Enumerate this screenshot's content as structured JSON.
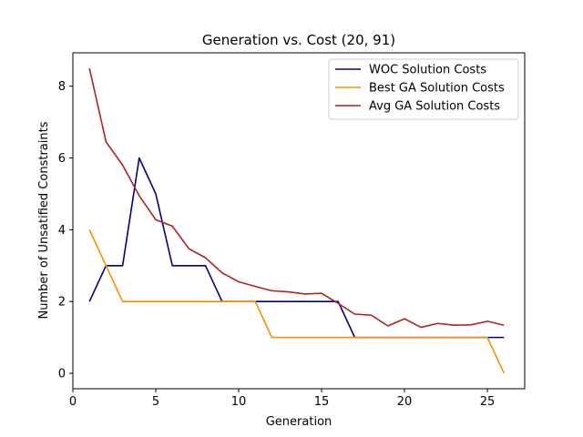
{
  "chart_data": {
    "type": "line",
    "title": "Generation vs. Cost (20, 91)",
    "xlabel": "Generation",
    "ylabel": "Number of Unsatified Constraints",
    "xlim": [
      0,
      27.25
    ],
    "ylim": [
      -0.43,
      8.93
    ],
    "xticks": [
      0,
      5,
      10,
      15,
      20,
      25
    ],
    "yticks": [
      0,
      2,
      4,
      6,
      8
    ],
    "grid": false,
    "legend_position": "top-right",
    "x": [
      1,
      2,
      3,
      4,
      5,
      6,
      7,
      8,
      9,
      10,
      11,
      12,
      13,
      14,
      15,
      16,
      17,
      18,
      19,
      20,
      21,
      22,
      23,
      24,
      25,
      26
    ],
    "series": [
      {
        "name": "WOC Solution Costs",
        "color": "#000080",
        "values": [
          2,
          3,
          3,
          6,
          5,
          3,
          3,
          3,
          2,
          2,
          2,
          2,
          2,
          2,
          2,
          2,
          1,
          1,
          1,
          1,
          1,
          1,
          1,
          1,
          1,
          1
        ]
      },
      {
        "name": "Best GA Solution Costs",
        "color": "#ff8c00",
        "values": [
          4,
          3,
          2,
          2,
          2,
          2,
          2,
          2,
          2,
          2,
          2,
          1,
          1,
          1,
          1,
          1,
          1,
          1,
          1,
          1,
          1,
          1,
          1,
          1,
          1,
          0
        ]
      },
      {
        "name": "Avg GA Solution Costs",
        "color": "#b22222",
        "values": [
          8.5,
          6.45,
          5.8,
          4.95,
          4.28,
          4.1,
          3.47,
          3.22,
          2.8,
          2.55,
          2.42,
          2.3,
          2.27,
          2.21,
          2.23,
          1.95,
          1.65,
          1.62,
          1.32,
          1.52,
          1.28,
          1.39,
          1.34,
          1.35,
          1.45,
          1.34
        ]
      }
    ]
  }
}
